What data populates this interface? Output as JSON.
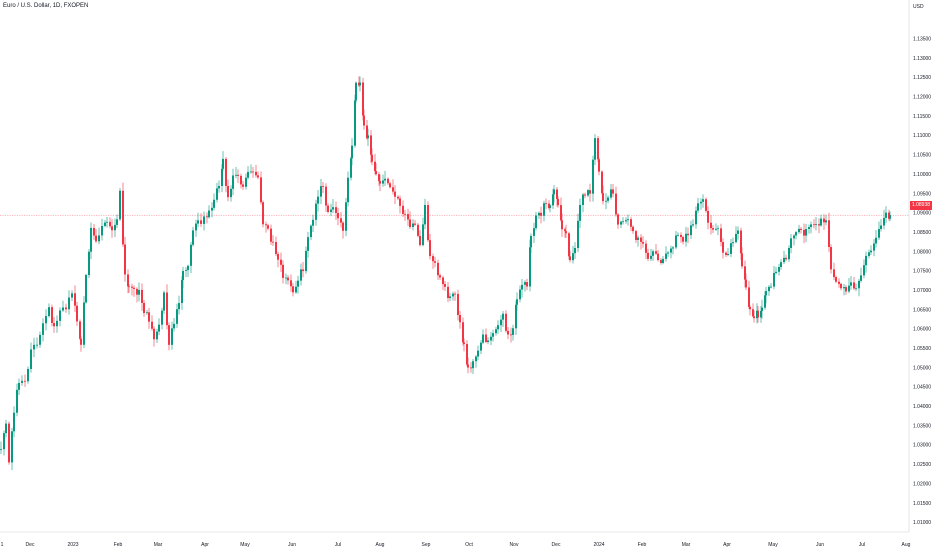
{
  "header": {
    "title": "Euro / U.S. Dollar, 1D, FXOPEN",
    "currency": "USD"
  },
  "last_price_label": "1.08938",
  "chart_data": {
    "type": "candlestick",
    "title": "Euro / U.S. Dollar, 1D, FXOPEN",
    "ylabel": "USD",
    "ylim": [
      1.0075,
      1.145
    ],
    "y_ticks": [
      "1.13500",
      "1.13000",
      "1.12500",
      "1.12000",
      "1.11500",
      "1.11000",
      "1.10500",
      "1.10000",
      "1.09500",
      "1.09000",
      "1.08500",
      "1.08000",
      "1.07500",
      "1.07000",
      "1.06500",
      "1.06000",
      "1.05500",
      "1.05000",
      "1.04500",
      "1.04000",
      "1.03500",
      "1.03000",
      "1.02500",
      "1.02000",
      "1.01500",
      "1.01000"
    ],
    "x_ticks": [
      "1",
      "Dec",
      "2023",
      "Feb",
      "Mar",
      "Apr",
      "May",
      "Jun",
      "Jul",
      "Aug",
      "Sep",
      "Oct",
      "Nov",
      "Dec",
      "2024",
      "Feb",
      "Mar",
      "Apr",
      "May",
      "Jun",
      "Jul",
      "Aug"
    ],
    "grid": false,
    "last_price": 1.08938,
    "colors": {
      "up": "#089981",
      "down": "#f23645",
      "last_price_line": "#f23645",
      "text": "#131722"
    },
    "path_anchors": [
      [
        0,
        1.03
      ],
      [
        5,
        1.035
      ],
      [
        8,
        1.026
      ],
      [
        13,
        1.039
      ],
      [
        18,
        1.046
      ],
      [
        24,
        1.047
      ],
      [
        30,
        1.054
      ],
      [
        36,
        1.056
      ],
      [
        42,
        1.062
      ],
      [
        48,
        1.066
      ],
      [
        53,
        1.06
      ],
      [
        59,
        1.064
      ],
      [
        65,
        1.066
      ],
      [
        71,
        1.07
      ],
      [
        76,
        1.062
      ],
      [
        80,
        1.056
      ],
      [
        85,
        1.075
      ],
      [
        90,
        1.085
      ],
      [
        95,
        1.082
      ],
      [
        101,
        1.086
      ],
      [
        106,
        1.088
      ],
      [
        111,
        1.086
      ],
      [
        116,
        1.088
      ],
      [
        119,
        1.096
      ],
      [
        124,
        1.074
      ],
      [
        128,
        1.071
      ],
      [
        133,
        1.071
      ],
      [
        138,
        1.069
      ],
      [
        143,
        1.065
      ],
      [
        148,
        1.062
      ],
      [
        153,
        1.058
      ],
      [
        158,
        1.06
      ],
      [
        163,
        1.069
      ],
      [
        168,
        1.056
      ],
      [
        173,
        1.062
      ],
      [
        178,
        1.066
      ],
      [
        182,
        1.076
      ],
      [
        187,
        1.076
      ],
      [
        192,
        1.086
      ],
      [
        197,
        1.088
      ],
      [
        203,
        1.088
      ],
      [
        208,
        1.09
      ],
      [
        213,
        1.093
      ],
      [
        218,
        1.097
      ],
      [
        222,
        1.103
      ],
      [
        227,
        1.093
      ],
      [
        232,
        1.099
      ],
      [
        237,
        1.099
      ],
      [
        242,
        1.096
      ],
      [
        247,
        1.101
      ],
      [
        252,
        1.101
      ],
      [
        257,
        1.099
      ],
      [
        262,
        1.088
      ],
      [
        267,
        1.086
      ],
      [
        272,
        1.082
      ],
      [
        277,
        1.078
      ],
      [
        282,
        1.074
      ],
      [
        287,
        1.073
      ],
      [
        292,
        1.07
      ],
      [
        297,
        1.072
      ],
      [
        302,
        1.076
      ],
      [
        307,
        1.083
      ],
      [
        312,
        1.089
      ],
      [
        317,
        1.095
      ],
      [
        322,
        1.097
      ],
      [
        327,
        1.09
      ],
      [
        332,
        1.092
      ],
      [
        337,
        1.089
      ],
      [
        342,
        1.086
      ],
      [
        347,
        1.098
      ],
      [
        351,
        1.107
      ],
      [
        355,
        1.123
      ],
      [
        359,
        1.124
      ],
      [
        363,
        1.113
      ],
      [
        367,
        1.109
      ],
      [
        371,
        1.103
      ],
      [
        375,
        1.1
      ],
      [
        379,
        1.098
      ],
      [
        384,
        1.099
      ],
      [
        389,
        1.097
      ],
      [
        394,
        1.095
      ],
      [
        399,
        1.092
      ],
      [
        404,
        1.09
      ],
      [
        409,
        1.087
      ],
      [
        414,
        1.086
      ],
      [
        419,
        1.081
      ],
      [
        424,
        1.092
      ],
      [
        429,
        1.078
      ],
      [
        434,
        1.076
      ],
      [
        439,
        1.073
      ],
      [
        444,
        1.07
      ],
      [
        449,
        1.068
      ],
      [
        454,
        1.068
      ],
      [
        459,
        1.062
      ],
      [
        463,
        1.056
      ],
      [
        467,
        1.05
      ],
      [
        472,
        1.051
      ],
      [
        477,
        1.055
      ],
      [
        482,
        1.058
      ],
      [
        487,
        1.056
      ],
      [
        492,
        1.059
      ],
      [
        497,
        1.06
      ],
      [
        502,
        1.064
      ],
      [
        507,
        1.058
      ],
      [
        512,
        1.06
      ],
      [
        516,
        1.068
      ],
      [
        521,
        1.072
      ],
      [
        526,
        1.071
      ],
      [
        530,
        1.084
      ],
      [
        535,
        1.089
      ],
      [
        540,
        1.09
      ],
      [
        545,
        1.093
      ],
      [
        549,
        1.092
      ],
      [
        553,
        1.095
      ],
      [
        557,
        1.093
      ],
      [
        561,
        1.086
      ],
      [
        565,
        1.085
      ],
      [
        569,
        1.077
      ],
      [
        574,
        1.08
      ],
      [
        579,
        1.093
      ],
      [
        584,
        1.095
      ],
      [
        589,
        1.096
      ],
      [
        594,
        1.109
      ],
      [
        598,
        1.101
      ],
      [
        602,
        1.092
      ],
      [
        607,
        1.094
      ],
      [
        612,
        1.096
      ],
      [
        617,
        1.087
      ],
      [
        622,
        1.088
      ],
      [
        627,
        1.088
      ],
      [
        632,
        1.085
      ],
      [
        637,
        1.083
      ],
      [
        642,
        1.081
      ],
      [
        647,
        1.079
      ],
      [
        652,
        1.079
      ],
      [
        657,
        1.078
      ],
      [
        662,
        1.077
      ],
      [
        667,
        1.08
      ],
      [
        672,
        1.082
      ],
      [
        677,
        1.084
      ],
      [
        682,
        1.082
      ],
      [
        687,
        1.085
      ],
      [
        692,
        1.088
      ],
      [
        697,
        1.093
      ],
      [
        702,
        1.093
      ],
      [
        707,
        1.088
      ],
      [
        712,
        1.085
      ],
      [
        717,
        1.086
      ],
      [
        722,
        1.079
      ],
      [
        727,
        1.08
      ],
      [
        732,
        1.083
      ],
      [
        737,
        1.086
      ],
      [
        741,
        1.077
      ],
      [
        745,
        1.071
      ],
      [
        749,
        1.065
      ],
      [
        753,
        1.063
      ],
      [
        757,
        1.064
      ],
      [
        761,
        1.066
      ],
      [
        765,
        1.069
      ],
      [
        770,
        1.072
      ],
      [
        775,
        1.075
      ],
      [
        780,
        1.078
      ],
      [
        785,
        1.079
      ],
      [
        790,
        1.083
      ],
      [
        795,
        1.086
      ],
      [
        800,
        1.085
      ],
      [
        805,
        1.085
      ],
      [
        810,
        1.087
      ],
      [
        815,
        1.086
      ],
      [
        820,
        1.088
      ],
      [
        825,
        1.088
      ],
      [
        830,
        1.076
      ],
      [
        835,
        1.072
      ],
      [
        840,
        1.071
      ],
      [
        845,
        1.07
      ],
      [
        850,
        1.072
      ],
      [
        855,
        1.07
      ],
      [
        860,
        1.073
      ],
      [
        865,
        1.079
      ],
      [
        870,
        1.081
      ],
      [
        875,
        1.083
      ],
      [
        880,
        1.086
      ],
      [
        885,
        1.09
      ],
      [
        889,
        1.0894
      ]
    ]
  }
}
